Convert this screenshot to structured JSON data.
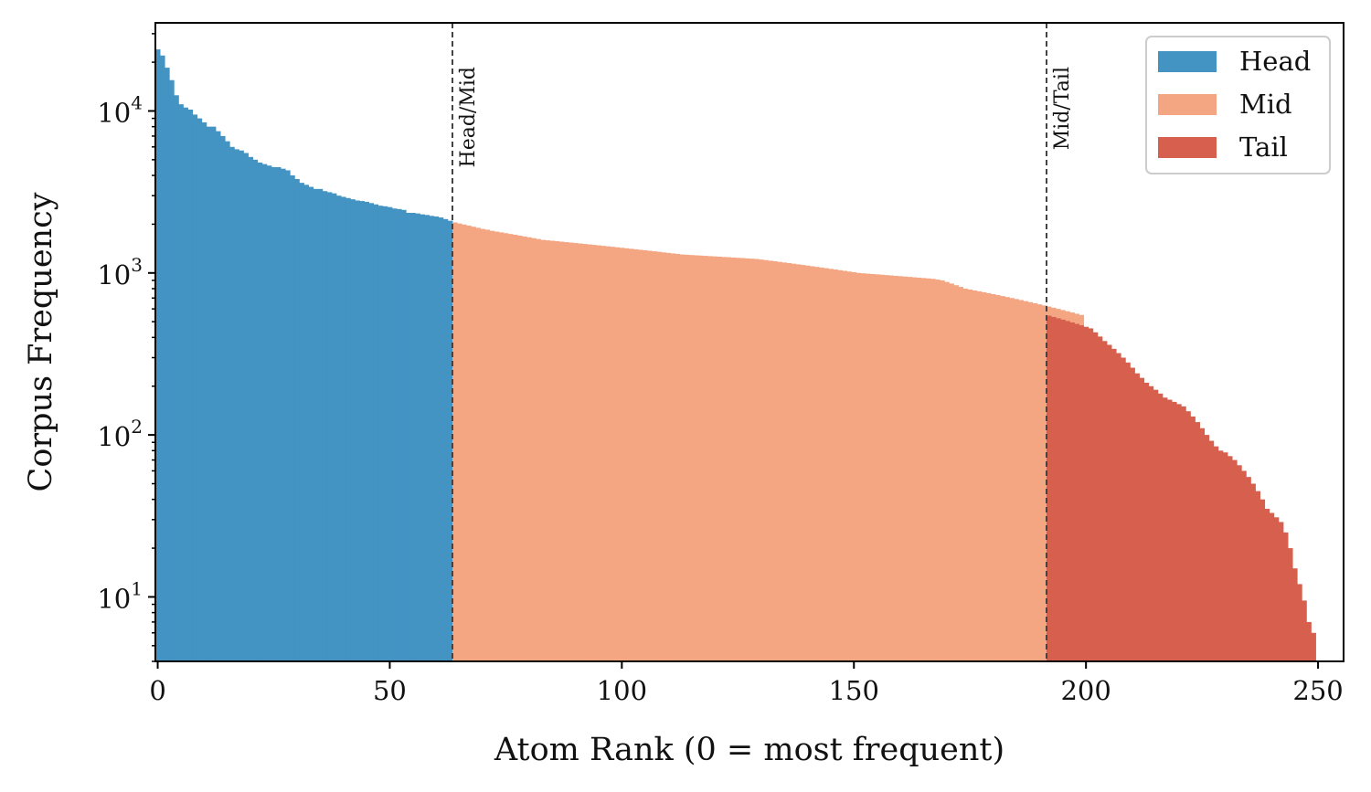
{
  "chart_data": {
    "type": "bar",
    "scale": {
      "x": "linear",
      "y": "log"
    },
    "xlabel": "Atom Rank (0 = most frequent)",
    "ylabel": "Corpus Frequency",
    "xlim": [
      -0.5,
      255.5
    ],
    "ylim": [
      4,
      35000
    ],
    "x_ticks": [
      0,
      50,
      100,
      150,
      200,
      250
    ],
    "x_tick_labels": [
      "0",
      "50",
      "100",
      "150",
      "200",
      "250"
    ],
    "y_ticks": [
      10,
      100,
      1000,
      10000
    ],
    "y_tick_labels": [
      {
        "base": "10",
        "exp": "1"
      },
      {
        "base": "10",
        "exp": "2"
      },
      {
        "base": "10",
        "exp": "3"
      },
      {
        "base": "10",
        "exp": "4"
      }
    ],
    "grid": false,
    "legend_position": "top-right",
    "series": [
      {
        "name": "Head",
        "color": "#4393c3",
        "x_start": 0,
        "values": [
          24000,
          22000,
          18500,
          15500,
          12500,
          11000,
          10500,
          10200,
          9500,
          9000,
          8500,
          8000,
          8000,
          7500,
          7000,
          6500,
          6000,
          5800,
          5700,
          5500,
          5200,
          5000,
          4800,
          4700,
          4600,
          4500,
          4500,
          4400,
          4300,
          4000,
          3800,
          3600,
          3500,
          3400,
          3300,
          3300,
          3200,
          3150,
          3100,
          3000,
          2950,
          2900,
          2850,
          2800,
          2780,
          2750,
          2700,
          2650,
          2600,
          2580,
          2550,
          2500,
          2480,
          2450,
          2350,
          2350,
          2330,
          2300,
          2280,
          2250,
          2230,
          2200,
          2150,
          2100
        ]
      },
      {
        "name": "Mid",
        "color": "#f4a582",
        "x_start": 64,
        "values": [
          2050,
          2020,
          1990,
          1960,
          1930,
          1900,
          1870,
          1850,
          1820,
          1800,
          1780,
          1760,
          1740,
          1720,
          1700,
          1680,
          1660,
          1640,
          1620,
          1600,
          1590,
          1580,
          1570,
          1560,
          1550,
          1540,
          1530,
          1520,
          1510,
          1500,
          1490,
          1480,
          1470,
          1460,
          1450,
          1440,
          1430,
          1420,
          1410,
          1400,
          1390,
          1380,
          1370,
          1360,
          1350,
          1340,
          1330,
          1320,
          1310,
          1300,
          1295,
          1290,
          1285,
          1280,
          1275,
          1270,
          1265,
          1260,
          1255,
          1250,
          1245,
          1240,
          1235,
          1230,
          1225,
          1220,
          1210,
          1200,
          1190,
          1180,
          1170,
          1160,
          1150,
          1140,
          1130,
          1120,
          1110,
          1100,
          1090,
          1080,
          1070,
          1060,
          1050,
          1040,
          1030,
          1020,
          1010,
          1000,
          995,
          990,
          985,
          980,
          975,
          970,
          965,
          960,
          955,
          950,
          945,
          940,
          935,
          930,
          925,
          920,
          910,
          900,
          880,
          860,
          840,
          820,
          800,
          790,
          780,
          770,
          760,
          750,
          740,
          730,
          720,
          710,
          700,
          690,
          680,
          670,
          660,
          650,
          640,
          630,
          620,
          610,
          600,
          590,
          580,
          570,
          560,
          550
        ]
      },
      {
        "name": "Tail",
        "color": "#d6604d",
        "x_start": 192,
        "values": [
          545,
          535,
          525,
          515,
          505,
          495,
          485,
          475,
          465,
          455,
          430,
          405,
          380,
          360,
          340,
          320,
          300,
          280,
          260,
          240,
          225,
          210,
          200,
          190,
          180,
          170,
          165,
          160,
          155,
          150,
          140,
          130,
          120,
          110,
          100,
          92,
          85,
          80,
          78,
          74,
          70,
          65,
          60,
          55,
          50,
          45,
          40,
          35,
          33,
          31,
          29,
          25,
          20,
          15,
          12,
          9.5,
          7,
          6
        ]
      }
    ],
    "annotations": [
      {
        "type": "vline",
        "x": 63.5,
        "label": "Head/Mid"
      },
      {
        "type": "vline",
        "x": 191.5,
        "label": "Mid/Tail"
      }
    ]
  }
}
